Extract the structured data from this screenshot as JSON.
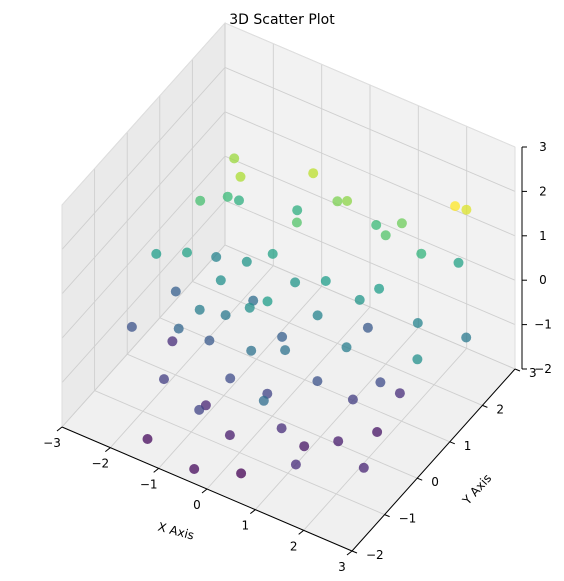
{
  "chart_data": {
    "type": "scatter",
    "projection": "3d",
    "title": "3D Scatter Plot",
    "xlabel": "X Axis",
    "ylabel": "Y Axis",
    "zlabel": "",
    "xlim": [
      -3,
      3
    ],
    "ylim": [
      -2,
      3
    ],
    "zlim": [
      -2,
      3
    ],
    "xticks": [
      "−3",
      "−2",
      "−1",
      "0",
      "1",
      "2",
      "3"
    ],
    "yticks": [
      "−2",
      "−1",
      "0",
      "1",
      "2",
      "3"
    ],
    "zticks": [
      "−2",
      "−1",
      "0",
      "1",
      "2",
      "3"
    ],
    "grid": true,
    "colormap": "viridis",
    "color_by": "z",
    "points": [
      {
        "x": 2.3,
        "y": 2.2,
        "z": 2.0
      },
      {
        "x": 2.4,
        "y": 2.4,
        "z": 1.8
      },
      {
        "x": -2.0,
        "y": 1.8,
        "z": 1.4
      },
      {
        "x": -1.6,
        "y": 1.4,
        "z": 1.5
      },
      {
        "x": -0.5,
        "y": 2.0,
        "z": 1.6
      },
      {
        "x": 0.0,
        "y": 2.0,
        "z": 1.2
      },
      {
        "x": 0.2,
        "y": 2.0,
        "z": 1.3
      },
      {
        "x": 1.2,
        "y": 2.2,
        "z": 1.1
      },
      {
        "x": 1.0,
        "y": 2.0,
        "z": 0.9
      },
      {
        "x": -2.0,
        "y": 1.6,
        "z": 0.7
      },
      {
        "x": -1.9,
        "y": 1.8,
        "z": 0.5
      },
      {
        "x": 1.6,
        "y": 2.2,
        "z": 0.6
      },
      {
        "x": 1.2,
        "y": 1.5,
        "z": 0.2
      },
      {
        "x": -0.8,
        "y": 1.2,
        "z": 0.3
      },
      {
        "x": -1.2,
        "y": 1.0,
        "z": 0.1
      },
      {
        "x": -0.2,
        "y": 1.0,
        "z": 0.1
      },
      {
        "x": 0.3,
        "y": 1.2,
        "z": 0.2
      },
      {
        "x": 1.0,
        "y": 1.2,
        "z": 0.1
      },
      {
        "x": -2.6,
        "y": 0.3,
        "z": 0.2
      },
      {
        "x": -2.1,
        "y": 0.5,
        "z": 0.3
      },
      {
        "x": -1.4,
        "y": 0.5,
        "z": 0.0
      },
      {
        "x": -0.6,
        "y": 0.2,
        "z": 0.0
      },
      {
        "x": -0.3,
        "y": 0.3,
        "z": 0.2
      },
      {
        "x": 0.4,
        "y": 0.8,
        "z": -0.2
      },
      {
        "x": 1.2,
        "y": 0.5,
        "z": -0.3
      },
      {
        "x": 2.0,
        "y": 1.5,
        "z": -0.2
      },
      {
        "x": 2.6,
        "y": 0.6,
        "z": 0.0
      },
      {
        "x": -1.5,
        "y": 0.0,
        "z": -0.3
      },
      {
        "x": -1.1,
        "y": 0.2,
        "z": -0.4
      },
      {
        "x": -0.3,
        "y": -0.2,
        "z": -0.5
      },
      {
        "x": 0.2,
        "y": 0.1,
        "z": -0.5
      },
      {
        "x": -2.4,
        "y": 0.6,
        "z": -0.8
      },
      {
        "x": -1.8,
        "y": -0.2,
        "z": -0.7
      },
      {
        "x": -1.3,
        "y": 0.0,
        "z": -0.9
      },
      {
        "x": -0.6,
        "y": -0.4,
        "z": -1.1
      },
      {
        "x": 0.1,
        "y": -0.3,
        "z": -1.2
      },
      {
        "x": 0.8,
        "y": 0.2,
        "z": -1.0
      },
      {
        "x": 1.4,
        "y": 0.4,
        "z": -1.3
      },
      {
        "x": 1.9,
        "y": 1.1,
        "z": -1.5
      },
      {
        "x": -2.2,
        "y": 0.2,
        "z": -1.5
      },
      {
        "x": -1.7,
        "y": -0.8,
        "z": -1.3
      },
      {
        "x": -0.9,
        "y": -0.7,
        "z": -1.6
      },
      {
        "x": -0.2,
        "y": -1.0,
        "z": -1.7
      },
      {
        "x": 0.6,
        "y": -0.6,
        "z": -1.5
      },
      {
        "x": 1.0,
        "y": -0.5,
        "z": -1.8
      },
      {
        "x": 1.5,
        "y": -0.2,
        "z": -1.7
      },
      {
        "x": 0.3,
        "y": -1.4,
        "z": -2.0
      },
      {
        "x": -1.5,
        "y": -1.6,
        "z": -1.9
      },
      {
        "x": -0.4,
        "y": -1.8,
        "z": -1.9
      },
      {
        "x": 1.9,
        "y": 0.4,
        "z": -1.8
      },
      {
        "x": 2.3,
        "y": -0.6,
        "z": -1.6
      },
      {
        "x": -0.7,
        "y": -1.2,
        "z": -1.2
      },
      {
        "x": 0.9,
        "y": 1.6,
        "z": -0.9
      },
      {
        "x": -2.3,
        "y": 1.2,
        "z": 0.8
      },
      {
        "x": -0.9,
        "y": 2.1,
        "z": 0.5
      },
      {
        "x": 0.6,
        "y": 2.3,
        "z": 0.7
      },
      {
        "x": 2.8,
        "y": 1.8,
        "z": -0.4
      },
      {
        "x": -1.9,
        "y": 1.1,
        "z": -0.2
      },
      {
        "x": 1.7,
        "y": 0.8,
        "z": -1.1
      },
      {
        "x": -0.2,
        "y": 0.6,
        "z": -0.8
      },
      {
        "x": 0.5,
        "y": -1.0,
        "z": -0.6
      },
      {
        "x": -2.7,
        "y": -0.3,
        "z": -1.0
      },
      {
        "x": -1.0,
        "y": 0.9,
        "z": -0.6
      },
      {
        "x": 1.3,
        "y": -1.2,
        "z": -1.5
      },
      {
        "x": 2.1,
        "y": 2.6,
        "z": 0.3
      },
      {
        "x": -0.5,
        "y": 1.5,
        "z": 0.9
      }
    ]
  }
}
